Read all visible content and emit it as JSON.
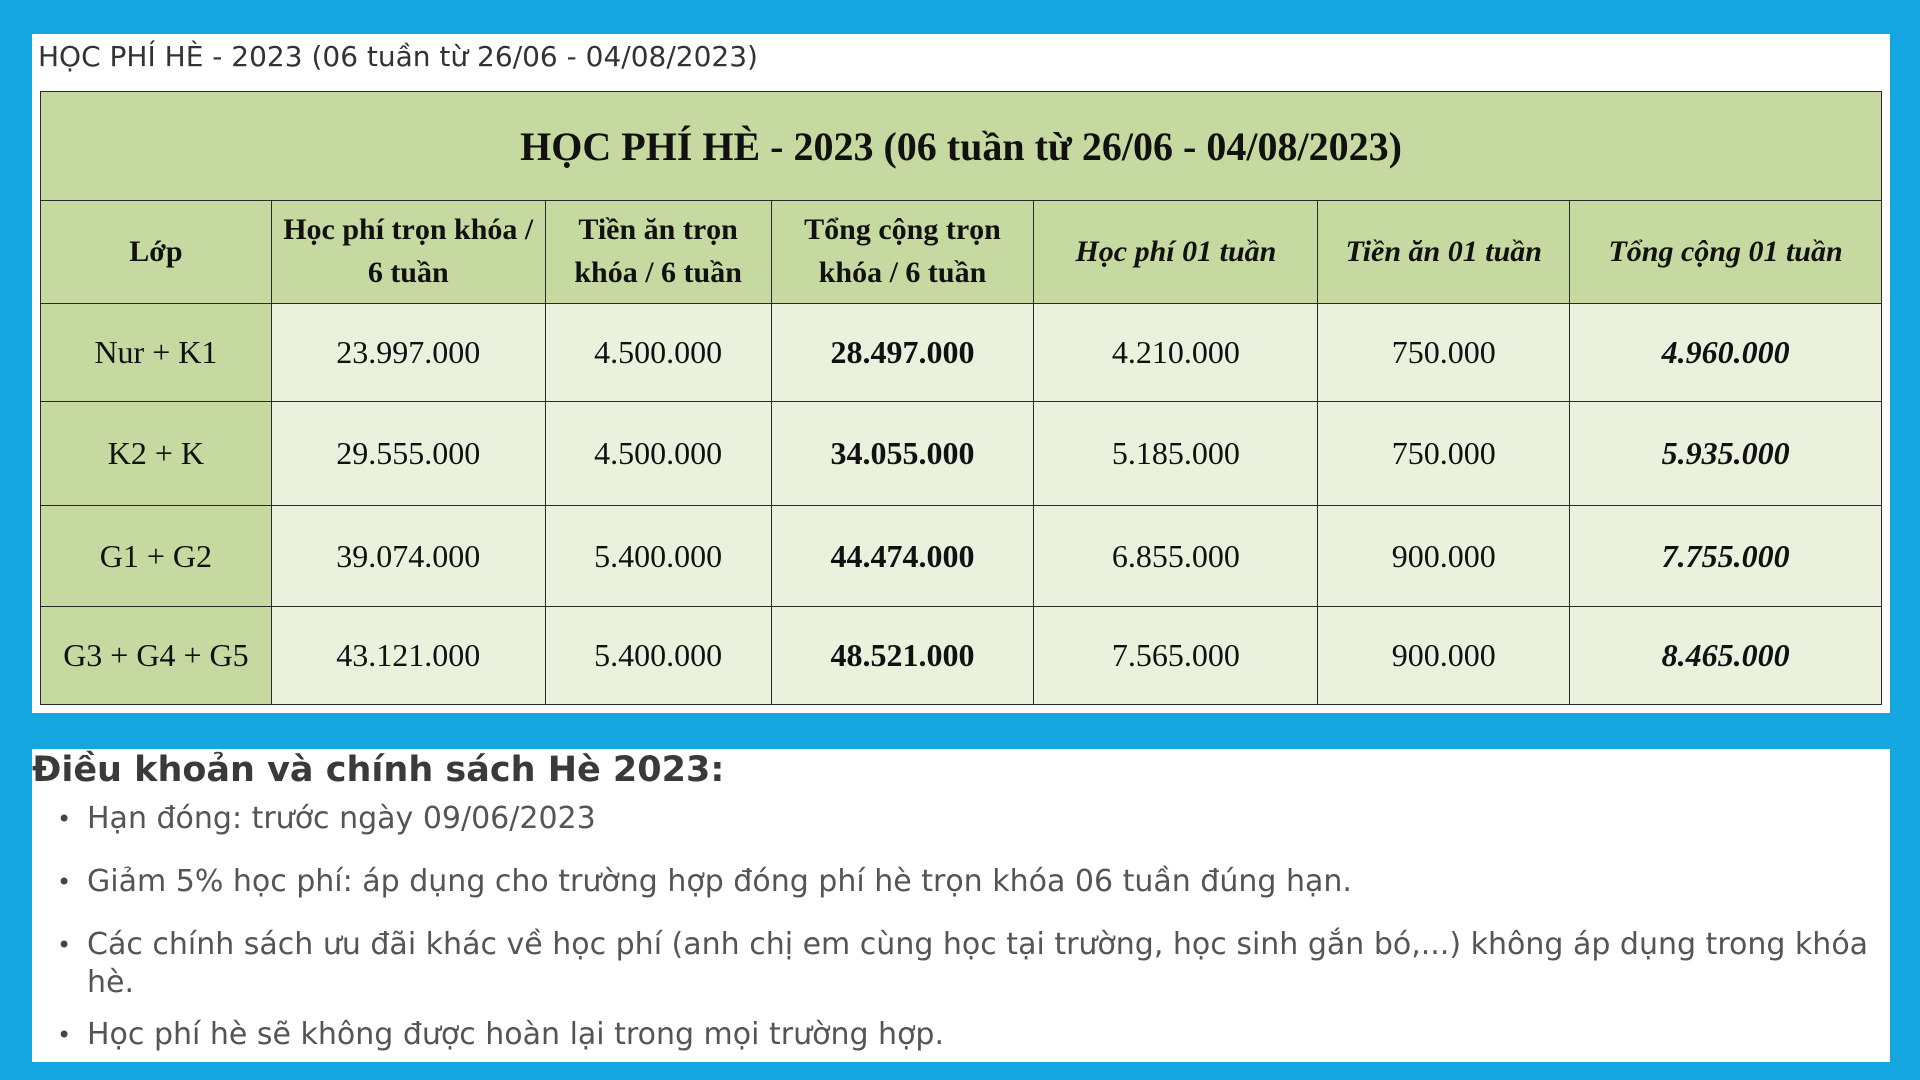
{
  "caption": "HỌC PHÍ HÈ - 2023 (06 tuần từ 26/06 - 04/08/2023)",
  "table": {
    "title": "HỌC PHÍ HÈ - 2023 (06 tuần từ 26/06 - 04/08/2023)",
    "headers": [
      "Lớp",
      "Học phí trọn khóa / 6 tuần",
      "Tiền ăn trọn khóa / 6 tuần",
      "Tổng cộng trọn khóa / 6 tuần",
      "Học phí 01 tuần",
      "Tiền ăn 01 tuần",
      "Tổng cộng 01 tuần"
    ],
    "rows": [
      [
        "Nur + K1",
        "23.997.000",
        "4.500.000",
        "28.497.000",
        "4.210.000",
        "750.000",
        "4.960.000"
      ],
      [
        "K2 + K",
        "29.555.000",
        "4.500.000",
        "34.055.000",
        "5.185.000",
        "750.000",
        "5.935.000"
      ],
      [
        "G1 + G2",
        "39.074.000",
        "5.400.000",
        "44.474.000",
        "6.855.000",
        "900.000",
        "7.755.000"
      ],
      [
        "G3 + G4 + G5",
        "43.121.000",
        "5.400.000",
        "48.521.000",
        "7.565.000",
        "900.000",
        "8.465.000"
      ]
    ]
  },
  "terms": {
    "title": "Điều khoản và chính sách Hè 2023:",
    "items": [
      "Hạn đóng: trước ngày 09/06/2023",
      "Giảm 5% học phí: áp dụng cho trường hợp đóng phí hè trọn khóa 06 tuần đúng hạn.",
      "Các chính sách ưu đãi khác về học phí (anh chị em cùng học tại trường, học sinh gắn bó,...) không áp dụng trong khóa hè.",
      "Học phí hè sẽ không được hoàn lại trong mọi trường hợp."
    ]
  }
}
